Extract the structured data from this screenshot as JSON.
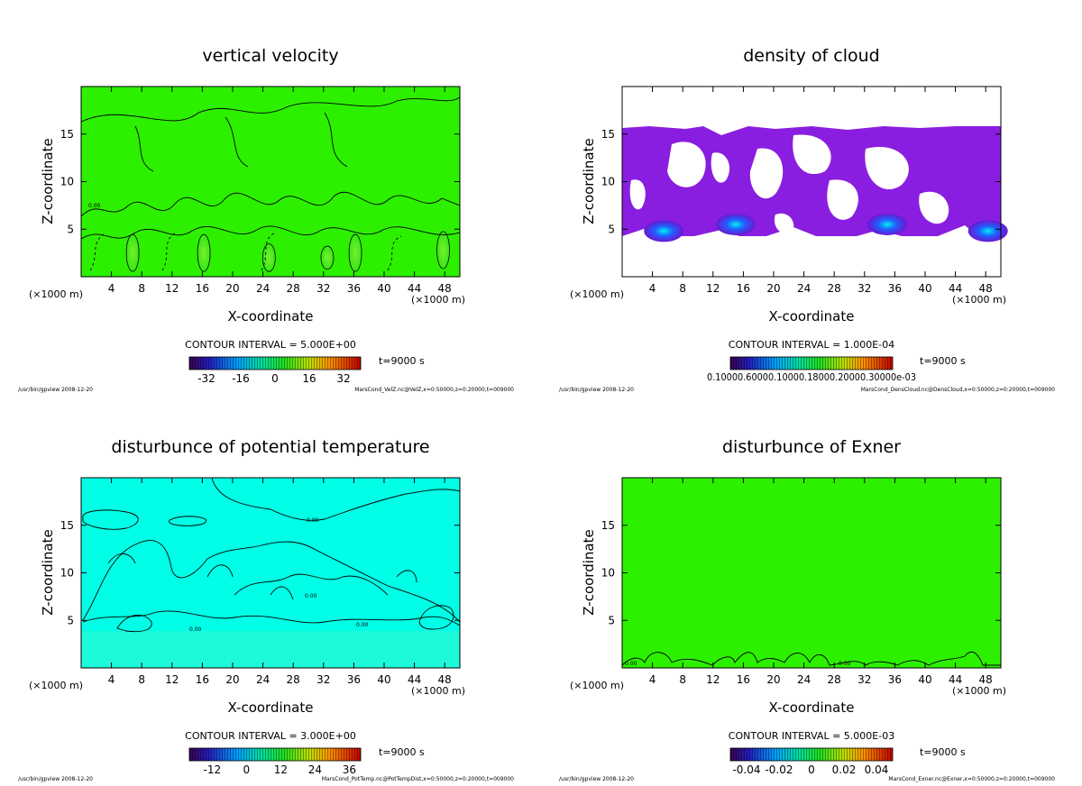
{
  "figure": {
    "program": "/usr/bin/gpview",
    "date": "2008-12-20",
    "time_label": "t=9000 s",
    "unit_label": "(×1000 m)",
    "x_label": "X-coordinate",
    "z_label": "Z-coordinate"
  },
  "chart_data": [
    {
      "type": "heatmap",
      "title": "vertical velocity",
      "xlabel": "X-coordinate",
      "ylabel": "Z-coordinate",
      "x_unit": "(×1000 m)",
      "xlim": [
        0,
        50
      ],
      "ylim": [
        0,
        20
      ],
      "x_ticks": [
        4,
        8,
        12,
        16,
        20,
        24,
        28,
        32,
        36,
        40,
        44,
        48
      ],
      "y_ticks": [
        5,
        10,
        15
      ],
      "contour_interval": "CONTOUR INTERVAL = 5.000E+00",
      "colorbar_ticks": [
        "-32",
        "-16",
        "0",
        "16",
        "32"
      ],
      "colorbar_range": [
        -40,
        40
      ],
      "contour_labels": [
        "0.00"
      ],
      "time": "t=9000 s",
      "footer_left": "/usr/bin/gpview   2008-12-20",
      "footer_right": "MarsCond_VelZ.nc@VelZ,x=0:50000,z=0:20000,t=009000",
      "updrafts": [
        {
          "x": 6.8,
          "z": 2.5,
          "peak": 16
        },
        {
          "x": 16.2,
          "z": 2.5,
          "peak": 16
        },
        {
          "x": 24.8,
          "z": 2.0,
          "peak": 12
        },
        {
          "x": 32.5,
          "z": 2.0,
          "peak": 10
        },
        {
          "x": 36.2,
          "z": 2.5,
          "peak": 16
        },
        {
          "x": 47.8,
          "z": 2.8,
          "peak": 16
        }
      ]
    },
    {
      "type": "heatmap",
      "title": "density of cloud",
      "xlabel": "X-coordinate",
      "ylabel": "Z-coordinate",
      "x_unit": "(×1000 m)",
      "xlim": [
        0,
        50
      ],
      "ylim": [
        0,
        20
      ],
      "x_ticks": [
        4,
        8,
        12,
        16,
        20,
        24,
        28,
        32,
        36,
        40,
        44,
        48
      ],
      "y_ticks": [
        5,
        10,
        15
      ],
      "contour_interval": "CONTOUR INTERVAL = 1.000E-04",
      "colorbar_ticks_text": "0.10000.60000.10000.18000.20000.30000e-03",
      "time": "t=9000 s",
      "footer_left": "/usr/bin/gpview   2008-12-20",
      "footer_right": "MarsCond_DensCloud.nc@DensCloud,x=0:50000,z=0:20000,t=009000",
      "cloud_top_z": 15.8,
      "cloud_base_z": 4.2,
      "dense_cores": [
        {
          "x": 5.5,
          "z": 4.8
        },
        {
          "x": 15.0,
          "z": 5.5
        },
        {
          "x": 35.0,
          "z": 5.5
        },
        {
          "x": 48.3,
          "z": 4.8
        }
      ]
    },
    {
      "type": "heatmap",
      "title": "disturbunce of potential temperature",
      "xlabel": "X-coordinate",
      "ylabel": "Z-coordinate",
      "x_unit": "(×1000 m)",
      "xlim": [
        0,
        50
      ],
      "ylim": [
        0,
        20
      ],
      "x_ticks": [
        4,
        8,
        12,
        16,
        20,
        24,
        28,
        32,
        36,
        40,
        44,
        48
      ],
      "y_ticks": [
        5,
        10,
        15
      ],
      "contour_interval": "CONTOUR INTERVAL = 3.000E+00",
      "colorbar_ticks": [
        "-12",
        "0",
        "12",
        "24",
        "36"
      ],
      "colorbar_range": [
        -20,
        40
      ],
      "contour_labels": [
        "0.00",
        "0.00",
        "0.00",
        "0.00"
      ],
      "time": "t=9000 s",
      "footer_left": "/usr/bin/gpview   2008-12-20",
      "footer_right": "MarsCond_PotTemp.nc@PotTempDist,x=0:50000,z=0:20000,t=009000"
    },
    {
      "type": "heatmap",
      "title": "disturbunce of Exner",
      "xlabel": "X-coordinate",
      "ylabel": "Z-coordinate",
      "x_unit": "(×1000 m)",
      "xlim": [
        0,
        50
      ],
      "ylim": [
        0,
        20
      ],
      "x_ticks": [
        4,
        8,
        12,
        16,
        20,
        24,
        28,
        32,
        36,
        40,
        44,
        48
      ],
      "y_ticks": [
        5,
        10,
        15
      ],
      "contour_interval": "CONTOUR INTERVAL = 5.000E-03",
      "colorbar_ticks": [
        "-0.04",
        "-0.02",
        "0",
        "0.02",
        "0.04"
      ],
      "colorbar_range": [
        -0.05,
        0.05
      ],
      "contour_labels": [
        "0.00",
        "0.00"
      ],
      "time": "t=9000 s",
      "footer_left": "/usr/bin/gpview   2008-12-20",
      "footer_right": "MarsCond_Exner.nc@Exner,x=0:50000,z=0:20000,t=009000"
    }
  ],
  "colors": {
    "field_green": "#2cf000",
    "field_cyan": "#00ffe6",
    "cloud_purple": "#8a1ee0",
    "cloud_blue": "#2050ff",
    "cloud_cyan": "#00e0ff"
  }
}
